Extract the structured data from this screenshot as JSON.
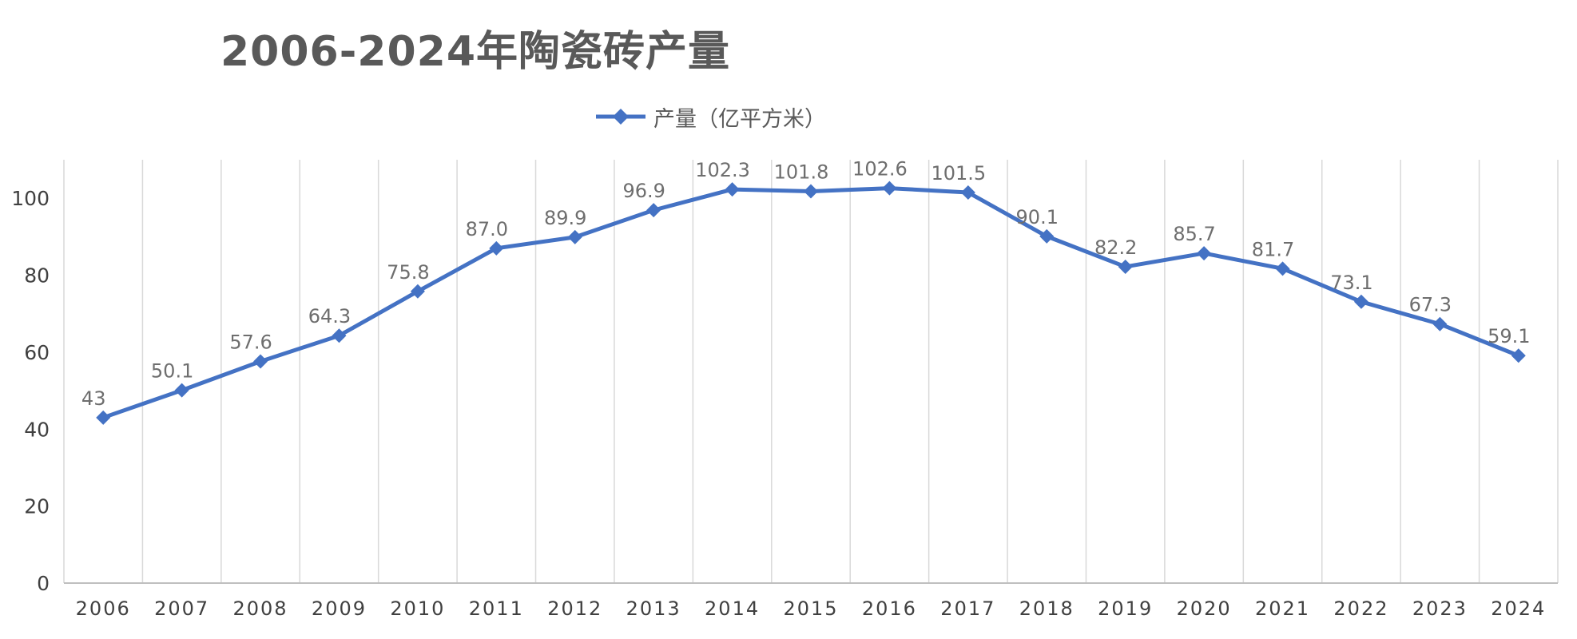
{
  "chart_data": {
    "type": "line",
    "title": "2006-2024年陶瓷砖产量",
    "xlabel": "",
    "ylabel": "",
    "categories": [
      "2006",
      "2007",
      "2008",
      "2009",
      "2010",
      "2011",
      "2012",
      "2013",
      "2014",
      "2015",
      "2016",
      "2017",
      "2018",
      "2019",
      "2020",
      "2021",
      "2022",
      "2023",
      "2024"
    ],
    "series": [
      {
        "name": "产量（亿平方米）",
        "values": [
          43,
          50.1,
          57.6,
          64.3,
          75.8,
          87.0,
          89.9,
          96.9,
          102.3,
          101.8,
          102.6,
          101.5,
          90.1,
          82.2,
          85.7,
          81.7,
          73.1,
          67.3,
          59.1
        ],
        "labels": [
          "43",
          "50.1",
          "57.6",
          "64.3",
          "75.8",
          "87.0",
          "89.9",
          "96.9",
          "102.3",
          "101.8",
          "102.6",
          "101.5",
          "90.1",
          "82.2",
          "85.7",
          "81.7",
          "73.1",
          "67.3",
          "59.1"
        ],
        "color": "#4472C4",
        "marker": "diamond"
      }
    ],
    "ylim": [
      0,
      110
    ],
    "yticks": [
      0,
      20,
      40,
      60,
      80,
      100
    ],
    "grid": "vertical",
    "legend": "top-center"
  }
}
